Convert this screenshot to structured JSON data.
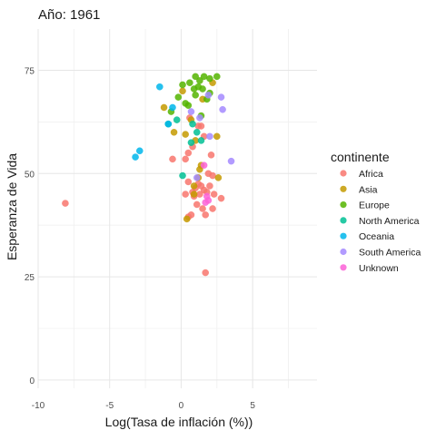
{
  "chart_data": {
    "type": "scatter",
    "title": "Año: 1961",
    "xlabel": "Log(Tasa de inflación (%))",
    "ylabel": "Esperanza de Vida",
    "xlim": [
      -10,
      9.5
    ],
    "ylim": [
      -2,
      85
    ],
    "x_ticks": [
      -10,
      -5,
      0,
      5
    ],
    "y_ticks": [
      0,
      25,
      50,
      75
    ],
    "x_tick_labels": [
      "-10",
      "-5",
      "0",
      "5"
    ],
    "y_tick_labels": [
      "0",
      "25",
      "50",
      "75"
    ],
    "grid": true,
    "legend": {
      "title": "continente",
      "placement": "right",
      "entries": [
        {
          "name": "Africa",
          "color": "#F8766D"
        },
        {
          "name": "Asia",
          "color": "#C49A00"
        },
        {
          "name": "Europe",
          "color": "#53B400"
        },
        {
          "name": "North America",
          "color": "#00C094"
        },
        {
          "name": "Oceania",
          "color": "#00B6EB"
        },
        {
          "name": "South America",
          "color": "#A58AFF"
        },
        {
          "name": "Unknown",
          "color": "#FB61D7"
        }
      ]
    },
    "series": [
      {
        "name": "Africa",
        "color": "#F8766D",
        "points": [
          {
            "x": -8.1,
            "y": 42.8
          },
          {
            "x": -0.6,
            "y": 53.5
          },
          {
            "x": 0.3,
            "y": 53.5
          },
          {
            "x": 0.5,
            "y": 55
          },
          {
            "x": 0.8,
            "y": 56.5
          },
          {
            "x": 0.6,
            "y": 63.5
          },
          {
            "x": 1.2,
            "y": 61.5
          },
          {
            "x": 1.4,
            "y": 61.5
          },
          {
            "x": 1.6,
            "y": 59
          },
          {
            "x": 2.1,
            "y": 54.5
          },
          {
            "x": 0.5,
            "y": 48
          },
          {
            "x": 0.8,
            "y": 45.5
          },
          {
            "x": 1.0,
            "y": 46.5
          },
          {
            "x": 1.2,
            "y": 47.5
          },
          {
            "x": 1.4,
            "y": 47
          },
          {
            "x": 1.6,
            "y": 46
          },
          {
            "x": 1.8,
            "y": 45.5
          },
          {
            "x": 2.0,
            "y": 47
          },
          {
            "x": 2.3,
            "y": 45
          },
          {
            "x": 0.3,
            "y": 45
          },
          {
            "x": 0.5,
            "y": 39.5
          },
          {
            "x": 0.7,
            "y": 40
          },
          {
            "x": 1.5,
            "y": 41.5
          },
          {
            "x": 1.7,
            "y": 40
          },
          {
            "x": 2.2,
            "y": 41.5
          },
          {
            "x": 2.8,
            "y": 44
          },
          {
            "x": 1.1,
            "y": 42.5
          },
          {
            "x": 1.9,
            "y": 50
          },
          {
            "x": 1.7,
            "y": 26
          },
          {
            "x": 0.9,
            "y": 44.5
          },
          {
            "x": 1.3,
            "y": 45
          },
          {
            "x": 2.2,
            "y": 49.5
          }
        ]
      },
      {
        "name": "Asia",
        "color": "#C49A00",
        "points": [
          {
            "x": -1.2,
            "y": 66
          },
          {
            "x": -0.5,
            "y": 60
          },
          {
            "x": 0.3,
            "y": 59.5
          },
          {
            "x": 0.7,
            "y": 63
          },
          {
            "x": 1.0,
            "y": 58
          },
          {
            "x": 1.3,
            "y": 51
          },
          {
            "x": 1.4,
            "y": 52
          },
          {
            "x": 1.2,
            "y": 49
          },
          {
            "x": 0.9,
            "y": 47
          },
          {
            "x": 2.5,
            "y": 59
          },
          {
            "x": 2.6,
            "y": 49
          },
          {
            "x": 0.4,
            "y": 39
          },
          {
            "x": 0.9,
            "y": 45
          },
          {
            "x": 2.2,
            "y": 72
          },
          {
            "x": 0.1,
            "y": 70
          },
          {
            "x": 1.5,
            "y": 68
          }
        ]
      },
      {
        "name": "Europe",
        "color": "#53B400",
        "points": [
          {
            "x": -0.7,
            "y": 65
          },
          {
            "x": -0.2,
            "y": 68.5
          },
          {
            "x": 0.1,
            "y": 71.5
          },
          {
            "x": 0.6,
            "y": 72
          },
          {
            "x": 1.0,
            "y": 73.5
          },
          {
            "x": 1.3,
            "y": 72.5
          },
          {
            "x": 1.6,
            "y": 73.5
          },
          {
            "x": 2.0,
            "y": 73
          },
          {
            "x": 2.5,
            "y": 73.5
          },
          {
            "x": 0.9,
            "y": 70.5
          },
          {
            "x": 1.5,
            "y": 70.5
          },
          {
            "x": 1.8,
            "y": 68
          },
          {
            "x": 0.3,
            "y": 67
          },
          {
            "x": 1.0,
            "y": 69
          },
          {
            "x": 1.2,
            "y": 71
          },
          {
            "x": 2.0,
            "y": 69.5
          },
          {
            "x": 0.5,
            "y": 66.5
          },
          {
            "x": 1.4,
            "y": 64
          }
        ]
      },
      {
        "name": "North America",
        "color": "#00C094",
        "points": [
          {
            "x": -0.9,
            "y": 62
          },
          {
            "x": -0.3,
            "y": 63
          },
          {
            "x": 0.1,
            "y": 49.5
          },
          {
            "x": 0.7,
            "y": 57.5
          },
          {
            "x": 1.1,
            "y": 60
          },
          {
            "x": 1.4,
            "y": 58
          },
          {
            "x": 0.8,
            "y": 62
          }
        ]
      },
      {
        "name": "Oceania",
        "color": "#00B6EB",
        "points": [
          {
            "x": -1.5,
            "y": 71
          },
          {
            "x": -3.2,
            "y": 54
          },
          {
            "x": -2.9,
            "y": 55.5
          },
          {
            "x": -0.6,
            "y": 66
          },
          {
            "x": -0.9,
            "y": 62
          }
        ]
      },
      {
        "name": "South America",
        "color": "#A58AFF",
        "points": [
          {
            "x": 0.7,
            "y": 65
          },
          {
            "x": 1.3,
            "y": 63.5
          },
          {
            "x": 1.9,
            "y": 69
          },
          {
            "x": 2.8,
            "y": 68.5
          },
          {
            "x": 2.9,
            "y": 65.5
          },
          {
            "x": 2.0,
            "y": 59
          },
          {
            "x": 3.5,
            "y": 53
          },
          {
            "x": 1.1,
            "y": 49
          }
        ]
      },
      {
        "name": "Unknown",
        "color": "#FB61D7",
        "points": [
          {
            "x": 1.6,
            "y": 52
          },
          {
            "x": 1.9,
            "y": 43.5
          },
          {
            "x": 1.8,
            "y": 44.5
          },
          {
            "x": 1.7,
            "y": 43
          }
        ]
      }
    ]
  }
}
